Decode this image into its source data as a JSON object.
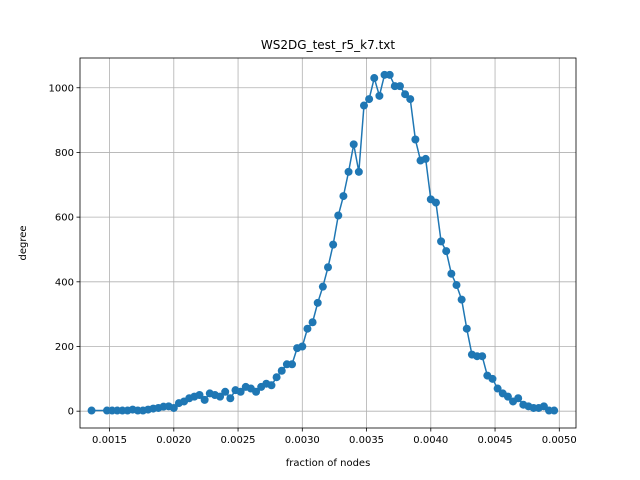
{
  "chart_data": {
    "type": "line",
    "title": "WS2DG_test_r5_k7.txt",
    "xlabel": "fraction of nodes",
    "ylabel": "degree",
    "xlim": [
      0.00127,
      0.00513
    ],
    "ylim": [
      -52,
      1092
    ],
    "xticks": [
      0.0015,
      0.002,
      0.0025,
      0.003,
      0.0035,
      0.004,
      0.0045,
      0.005
    ],
    "xtick_labels": [
      "0.0015",
      "0.0020",
      "0.0025",
      "0.0030",
      "0.0035",
      "0.0040",
      "0.0045",
      "0.0050"
    ],
    "yticks": [
      0,
      200,
      400,
      600,
      800,
      1000
    ],
    "ytick_labels": [
      "0",
      "200",
      "400",
      "600",
      "800",
      "1000"
    ],
    "grid": true,
    "color": "#1f77b4",
    "series": [
      {
        "x": [
          0.00136,
          0.00148,
          0.00152,
          0.00156,
          0.0016,
          0.00164,
          0.00168,
          0.00172,
          0.00176,
          0.0018,
          0.00184,
          0.00188,
          0.00192,
          0.00196,
          0.002,
          0.00204,
          0.00208,
          0.00212,
          0.00216,
          0.0022,
          0.00224,
          0.00228,
          0.00232,
          0.00236,
          0.0024,
          0.00244,
          0.00248,
          0.00252,
          0.00256,
          0.0026,
          0.00264,
          0.00268,
          0.00272,
          0.00276,
          0.0028,
          0.00284,
          0.00288,
          0.00292,
          0.00296,
          0.003,
          0.00304,
          0.00308,
          0.00312,
          0.00316,
          0.0032,
          0.00324,
          0.00328,
          0.00332,
          0.00336,
          0.0034,
          0.00344,
          0.00348,
          0.00352,
          0.00356,
          0.0036,
          0.00364,
          0.00368,
          0.00372,
          0.00376,
          0.0038,
          0.00384,
          0.00388,
          0.00392,
          0.00396,
          0.004,
          0.00404,
          0.00408,
          0.00412,
          0.00416,
          0.0042,
          0.00424,
          0.00428,
          0.00432,
          0.00436,
          0.0044,
          0.00444,
          0.00448,
          0.00452,
          0.00456,
          0.0046,
          0.00464,
          0.00468,
          0.00472,
          0.00476,
          0.0048,
          0.00484,
          0.00488,
          0.00492,
          0.00496
        ],
        "y": [
          2,
          2,
          2,
          2,
          2,
          2,
          5,
          2,
          2,
          5,
          8,
          10,
          14,
          15,
          10,
          25,
          30,
          40,
          45,
          50,
          35,
          55,
          50,
          45,
          60,
          40,
          65,
          60,
          75,
          70,
          60,
          75,
          85,
          80,
          105,
          125,
          145,
          145,
          195,
          200,
          255,
          275,
          335,
          385,
          445,
          515,
          605,
          665,
          740,
          825,
          740,
          945,
          965,
          1030,
          975,
          1040,
          1040,
          1005,
          1005,
          980,
          965,
          840,
          775,
          780,
          655,
          645,
          525,
          495,
          425,
          390,
          345,
          255,
          175,
          170,
          170,
          110,
          100,
          70,
          55,
          45,
          30,
          40,
          20,
          15,
          10,
          10,
          15,
          2,
          2
        ]
      }
    ]
  }
}
